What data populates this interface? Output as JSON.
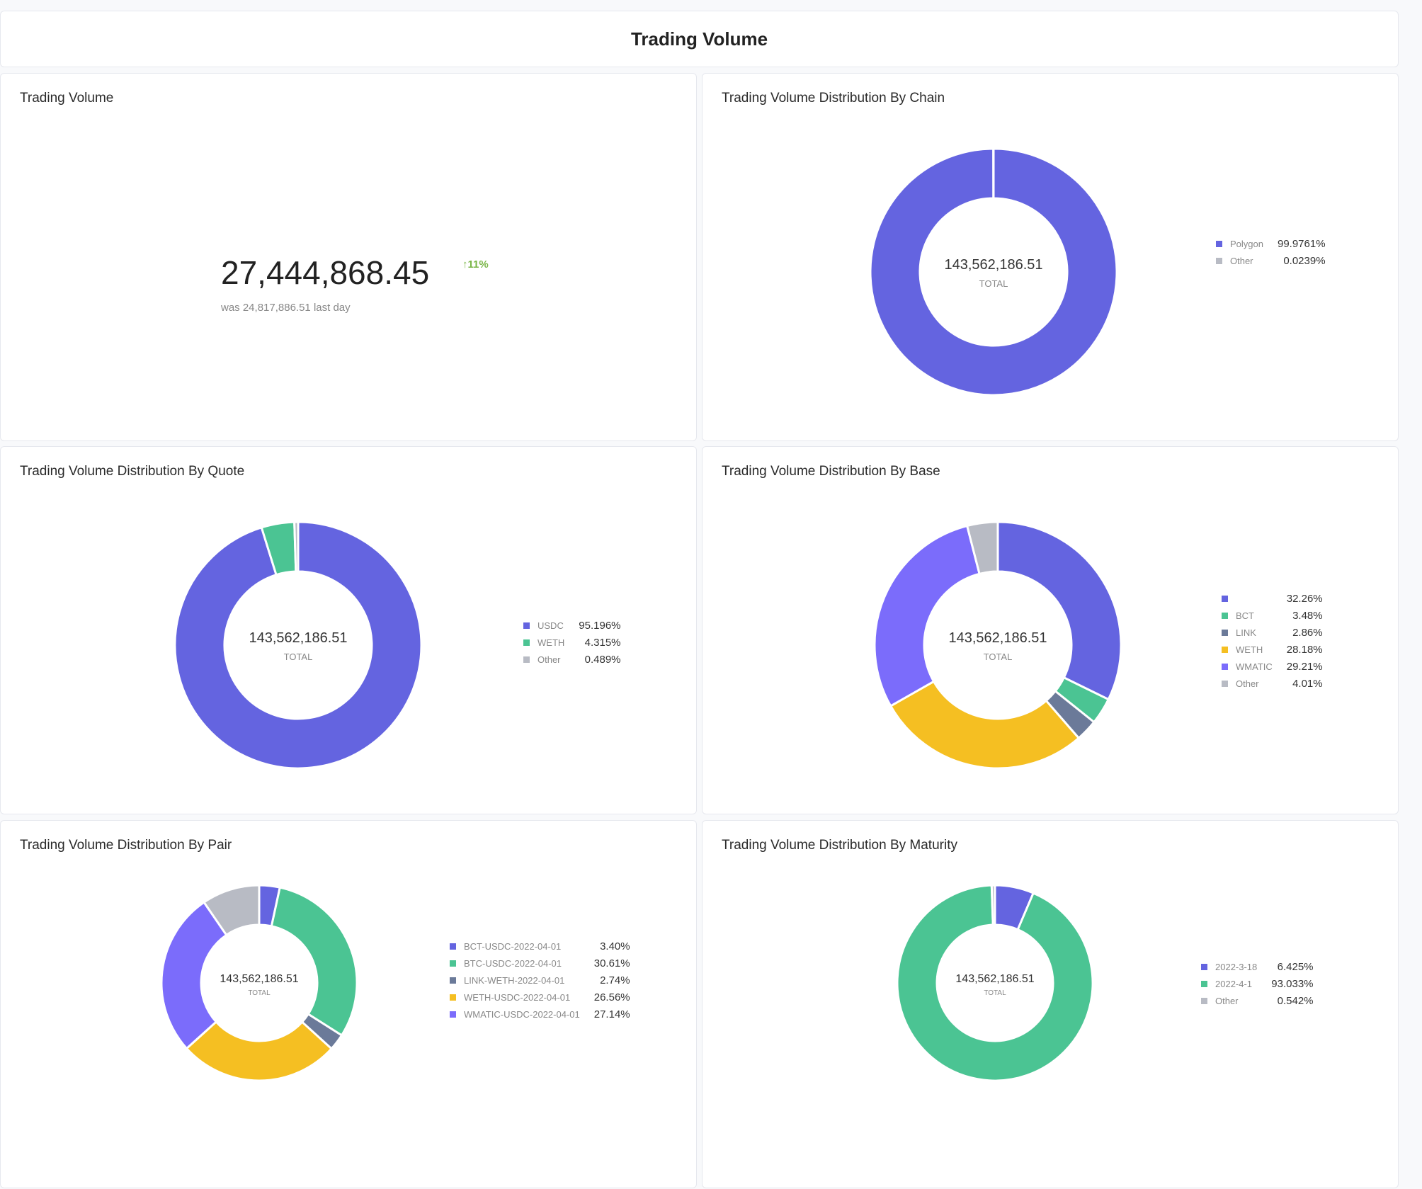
{
  "header": {
    "title": "Trading Volume"
  },
  "volume_card": {
    "title": "Trading Volume",
    "value": "27,444,868.45",
    "delta": "11%",
    "delta_icon": "arrow-up-icon",
    "previous": "was 24,817,886.51",
    "previous_suffix": "last day",
    "delta_color": "#7ab648"
  },
  "chart_data": [
    {
      "id": "chain",
      "type": "pie",
      "title": "Trading Volume Distribution By Chain",
      "center_value": "143,562,186.51",
      "center_label": "TOTAL",
      "categories": [
        "Polygon",
        "Other"
      ],
      "values": [
        99.9761,
        0.0239
      ],
      "labels": [
        "99.9761%",
        "0.0239%"
      ],
      "colors": [
        "#6464e0",
        "#b8bbc4"
      ]
    },
    {
      "id": "quote",
      "type": "pie",
      "title": "Trading Volume Distribution By Quote",
      "center_value": "143,562,186.51",
      "center_label": "TOTAL",
      "categories": [
        "USDC",
        "WETH",
        "Other"
      ],
      "values": [
        95.196,
        4.315,
        0.489
      ],
      "labels": [
        "95.196%",
        "4.315%",
        "0.489%"
      ],
      "colors": [
        "#6464e0",
        "#4bc493",
        "#b8bbc4"
      ]
    },
    {
      "id": "base",
      "type": "pie",
      "title": "Trading Volume Distribution By Base",
      "center_value": "143,562,186.51",
      "center_label": "TOTAL",
      "categories": [
        "",
        "BCT",
        "LINK",
        "WETH",
        "WMATIC",
        "Other"
      ],
      "values": [
        32.26,
        3.48,
        2.86,
        28.18,
        29.21,
        4.01
      ],
      "labels": [
        "32.26%",
        "3.48%",
        "2.86%",
        "28.18%",
        "29.21%",
        "4.01%"
      ],
      "colors": [
        "#6464e0",
        "#4bc493",
        "#6b7a99",
        "#f5bf22",
        "#7b6cfb",
        "#b8bbc4"
      ]
    },
    {
      "id": "pair",
      "type": "pie",
      "title": "Trading Volume Distribution By Pair",
      "center_value": "143,562,186.51",
      "center_label": "TOTAL",
      "categories": [
        "BCT-USDC-2022-04-01",
        "BTC-USDC-2022-04-01",
        "LINK-WETH-2022-04-01",
        "WETH-USDC-2022-04-01",
        "WMATIC-USDC-2022-04-01"
      ],
      "values": [
        3.4,
        30.61,
        2.74,
        26.56,
        27.14
      ],
      "labels": [
        "3.40%",
        "30.61%",
        "2.74%",
        "26.56%",
        "27.14%"
      ],
      "colors": [
        "#6464e0",
        "#4bc493",
        "#6b7a99",
        "#f5bf22",
        "#7b6cfb"
      ],
      "remainder_color": "#b8bbc4"
    },
    {
      "id": "maturity",
      "type": "pie",
      "title": "Trading Volume Distribution By Maturity",
      "center_value": "143,562,186.51",
      "center_label": "TOTAL",
      "categories": [
        "2022-3-18",
        "2022-4-1",
        "Other"
      ],
      "values": [
        6.425,
        93.033,
        0.542
      ],
      "labels": [
        "6.425%",
        "93.033%",
        "0.542%"
      ],
      "colors": [
        "#6464e0",
        "#4bc493",
        "#b8bbc4"
      ]
    }
  ]
}
